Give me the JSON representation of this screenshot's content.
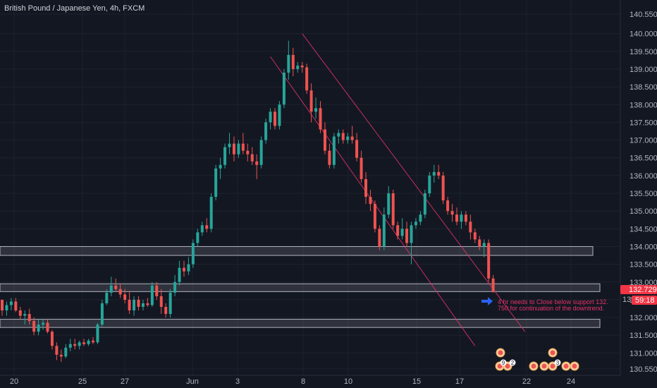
{
  "chart_data": {
    "type": "candlestick",
    "title": "British Pound / Japanese Yen, 4h, FXCM",
    "ylim": [
      130.4,
      140.7
    ],
    "y_ticks": [
      "140.550",
      "140.000",
      "139.500",
      "139.000",
      "138.500",
      "138.000",
      "137.500",
      "137.000",
      "136.500",
      "136.000",
      "135.500",
      "135.000",
      "134.500",
      "134.000",
      "133.500",
      "133.000",
      "132.500",
      "132.000",
      "131.500",
      "131.000",
      "130.550"
    ],
    "x_tick_labels": [
      "20",
      "25",
      "27",
      "Jun",
      "3",
      "8",
      "10",
      "15",
      "17",
      "22",
      "24"
    ],
    "price_label": "132.729",
    "countdown_label": "59:18",
    "hidden_tick_fragment": "13",
    "candles": [
      {
        "o": 132.5,
        "h": 132.5,
        "l": 132.05,
        "c": 132.2
      },
      {
        "o": 132.2,
        "h": 132.45,
        "l": 132.05,
        "c": 132.35
      },
      {
        "o": 132.35,
        "h": 132.55,
        "l": 132.2,
        "c": 132.45
      },
      {
        "o": 132.45,
        "h": 132.55,
        "l": 132.15,
        "c": 132.2
      },
      {
        "o": 132.2,
        "h": 132.3,
        "l": 131.95,
        "c": 132.05
      },
      {
        "o": 132.05,
        "h": 132.2,
        "l": 131.8,
        "c": 132.1
      },
      {
        "o": 132.1,
        "h": 132.25,
        "l": 131.8,
        "c": 131.9
      },
      {
        "o": 131.9,
        "h": 132.0,
        "l": 131.5,
        "c": 131.6
      },
      {
        "o": 131.6,
        "h": 131.95,
        "l": 131.5,
        "c": 131.8
      },
      {
        "o": 131.8,
        "h": 131.95,
        "l": 131.65,
        "c": 131.85
      },
      {
        "o": 131.85,
        "h": 131.95,
        "l": 131.55,
        "c": 131.6
      },
      {
        "o": 131.6,
        "h": 131.65,
        "l": 131.1,
        "c": 131.2
      },
      {
        "o": 131.2,
        "h": 131.3,
        "l": 130.8,
        "c": 130.95
      },
      {
        "o": 130.95,
        "h": 131.1,
        "l": 130.75,
        "c": 130.9
      },
      {
        "o": 130.9,
        "h": 131.25,
        "l": 130.85,
        "c": 131.15
      },
      {
        "o": 131.15,
        "h": 131.4,
        "l": 131.05,
        "c": 131.25
      },
      {
        "o": 131.25,
        "h": 131.4,
        "l": 131.1,
        "c": 131.2
      },
      {
        "o": 131.2,
        "h": 131.35,
        "l": 131.1,
        "c": 131.3
      },
      {
        "o": 131.3,
        "h": 131.4,
        "l": 131.2,
        "c": 131.25
      },
      {
        "o": 131.25,
        "h": 131.4,
        "l": 131.2,
        "c": 131.35
      },
      {
        "o": 131.35,
        "h": 131.45,
        "l": 131.25,
        "c": 131.3
      },
      {
        "o": 131.3,
        "h": 131.85,
        "l": 131.25,
        "c": 131.8
      },
      {
        "o": 131.8,
        "h": 132.5,
        "l": 131.75,
        "c": 132.4
      },
      {
        "o": 132.4,
        "h": 132.8,
        "l": 132.35,
        "c": 132.7
      },
      {
        "o": 132.7,
        "h": 133.15,
        "l": 132.6,
        "c": 132.9
      },
      {
        "o": 132.9,
        "h": 133.1,
        "l": 132.75,
        "c": 132.8
      },
      {
        "o": 132.8,
        "h": 132.95,
        "l": 132.55,
        "c": 132.65
      },
      {
        "o": 132.65,
        "h": 132.8,
        "l": 132.4,
        "c": 132.5
      },
      {
        "o": 132.5,
        "h": 132.75,
        "l": 132.1,
        "c": 132.2
      },
      {
        "o": 132.2,
        "h": 132.6,
        "l": 132.05,
        "c": 132.5
      },
      {
        "o": 132.5,
        "h": 132.6,
        "l": 132.2,
        "c": 132.3
      },
      {
        "o": 132.3,
        "h": 132.5,
        "l": 132.2,
        "c": 132.4
      },
      {
        "o": 132.4,
        "h": 132.55,
        "l": 132.3,
        "c": 132.35
      },
      {
        "o": 132.35,
        "h": 133.0,
        "l": 132.3,
        "c": 132.9
      },
      {
        "o": 132.9,
        "h": 133.0,
        "l": 132.5,
        "c": 132.6
      },
      {
        "o": 132.6,
        "h": 132.8,
        "l": 132.1,
        "c": 132.3
      },
      {
        "o": 132.3,
        "h": 132.4,
        "l": 132.0,
        "c": 132.1
      },
      {
        "o": 132.1,
        "h": 132.8,
        "l": 132.0,
        "c": 132.7
      },
      {
        "o": 132.7,
        "h": 133.2,
        "l": 132.6,
        "c": 133.0
      },
      {
        "o": 133.0,
        "h": 133.6,
        "l": 132.9,
        "c": 133.4
      },
      {
        "o": 133.4,
        "h": 133.6,
        "l": 133.15,
        "c": 133.3
      },
      {
        "o": 133.3,
        "h": 133.7,
        "l": 133.2,
        "c": 133.5
      },
      {
        "o": 133.5,
        "h": 134.2,
        "l": 133.4,
        "c": 134.1
      },
      {
        "o": 134.1,
        "h": 134.5,
        "l": 134.0,
        "c": 134.4
      },
      {
        "o": 134.4,
        "h": 134.7,
        "l": 134.3,
        "c": 134.6
      },
      {
        "o": 134.6,
        "h": 134.8,
        "l": 134.4,
        "c": 134.5
      },
      {
        "o": 134.5,
        "h": 135.5,
        "l": 134.4,
        "c": 135.4
      },
      {
        "o": 135.4,
        "h": 136.3,
        "l": 135.3,
        "c": 136.2
      },
      {
        "o": 136.2,
        "h": 136.5,
        "l": 135.9,
        "c": 136.3
      },
      {
        "o": 136.3,
        "h": 136.9,
        "l": 136.2,
        "c": 136.8
      },
      {
        "o": 136.8,
        "h": 137.2,
        "l": 136.6,
        "c": 136.9
      },
      {
        "o": 136.9,
        "h": 137.1,
        "l": 136.4,
        "c": 136.6
      },
      {
        "o": 136.6,
        "h": 137.0,
        "l": 136.5,
        "c": 136.9
      },
      {
        "o": 136.9,
        "h": 137.2,
        "l": 136.6,
        "c": 136.7
      },
      {
        "o": 136.7,
        "h": 136.9,
        "l": 136.4,
        "c": 136.6
      },
      {
        "o": 136.6,
        "h": 136.8,
        "l": 136.3,
        "c": 136.4
      },
      {
        "o": 136.4,
        "h": 136.6,
        "l": 135.9,
        "c": 136.3
      },
      {
        "o": 136.3,
        "h": 137.1,
        "l": 136.2,
        "c": 137.0
      },
      {
        "o": 137.0,
        "h": 137.6,
        "l": 136.9,
        "c": 137.5
      },
      {
        "o": 137.5,
        "h": 137.9,
        "l": 137.3,
        "c": 137.8
      },
      {
        "o": 137.8,
        "h": 137.9,
        "l": 137.3,
        "c": 137.4
      },
      {
        "o": 137.4,
        "h": 138.1,
        "l": 137.3,
        "c": 138.0
      },
      {
        "o": 138.0,
        "h": 139.0,
        "l": 137.9,
        "c": 138.9
      },
      {
        "o": 138.9,
        "h": 139.8,
        "l": 138.7,
        "c": 139.4
      },
      {
        "o": 139.4,
        "h": 139.6,
        "l": 138.8,
        "c": 139.0
      },
      {
        "o": 139.0,
        "h": 139.2,
        "l": 138.9,
        "c": 139.1
      },
      {
        "o": 139.1,
        "h": 139.2,
        "l": 138.9,
        "c": 139.05
      },
      {
        "o": 139.05,
        "h": 139.15,
        "l": 138.3,
        "c": 138.4
      },
      {
        "o": 138.4,
        "h": 138.6,
        "l": 137.5,
        "c": 137.8
      },
      {
        "o": 137.8,
        "h": 138.2,
        "l": 137.6,
        "c": 137.9
      },
      {
        "o": 137.9,
        "h": 138.1,
        "l": 137.2,
        "c": 137.3
      },
      {
        "o": 137.3,
        "h": 137.5,
        "l": 136.6,
        "c": 136.7
      },
      {
        "o": 136.7,
        "h": 136.9,
        "l": 136.2,
        "c": 136.3
      },
      {
        "o": 136.3,
        "h": 137.2,
        "l": 136.2,
        "c": 137.1
      },
      {
        "o": 137.1,
        "h": 137.3,
        "l": 136.9,
        "c": 137.2
      },
      {
        "o": 137.2,
        "h": 137.3,
        "l": 136.9,
        "c": 137.0
      },
      {
        "o": 137.0,
        "h": 137.2,
        "l": 136.9,
        "c": 137.1
      },
      {
        "o": 137.1,
        "h": 137.4,
        "l": 136.9,
        "c": 137.0
      },
      {
        "o": 137.0,
        "h": 137.2,
        "l": 136.4,
        "c": 136.5
      },
      {
        "o": 136.5,
        "h": 136.7,
        "l": 135.8,
        "c": 135.9
      },
      {
        "o": 135.9,
        "h": 136.1,
        "l": 135.2,
        "c": 135.4
      },
      {
        "o": 135.4,
        "h": 135.6,
        "l": 135.0,
        "c": 135.2
      },
      {
        "o": 135.2,
        "h": 135.3,
        "l": 134.4,
        "c": 134.5
      },
      {
        "o": 134.5,
        "h": 134.6,
        "l": 133.9,
        "c": 134.0
      },
      {
        "o": 134.0,
        "h": 135.1,
        "l": 133.9,
        "c": 134.9
      },
      {
        "o": 134.9,
        "h": 135.7,
        "l": 134.8,
        "c": 135.5
      },
      {
        "o": 135.5,
        "h": 135.6,
        "l": 134.5,
        "c": 134.6
      },
      {
        "o": 134.6,
        "h": 134.7,
        "l": 134.2,
        "c": 134.3
      },
      {
        "o": 134.3,
        "h": 134.8,
        "l": 134.2,
        "c": 134.5
      },
      {
        "o": 134.5,
        "h": 134.7,
        "l": 134.0,
        "c": 134.1
      },
      {
        "o": 134.1,
        "h": 134.7,
        "l": 133.5,
        "c": 134.6
      },
      {
        "o": 134.6,
        "h": 134.8,
        "l": 134.5,
        "c": 134.7
      },
      {
        "o": 134.7,
        "h": 135.0,
        "l": 134.6,
        "c": 134.9
      },
      {
        "o": 134.9,
        "h": 135.6,
        "l": 134.8,
        "c": 135.5
      },
      {
        "o": 135.5,
        "h": 136.1,
        "l": 135.4,
        "c": 136.0
      },
      {
        "o": 136.0,
        "h": 136.3,
        "l": 135.8,
        "c": 136.1
      },
      {
        "o": 136.1,
        "h": 136.3,
        "l": 135.9,
        "c": 136.0
      },
      {
        "o": 136.0,
        "h": 136.1,
        "l": 135.2,
        "c": 135.3
      },
      {
        "o": 135.3,
        "h": 135.4,
        "l": 134.9,
        "c": 135.0
      },
      {
        "o": 135.0,
        "h": 135.2,
        "l": 134.7,
        "c": 134.9
      },
      {
        "o": 134.9,
        "h": 135.1,
        "l": 134.6,
        "c": 134.7
      },
      {
        "o": 134.7,
        "h": 135.0,
        "l": 134.5,
        "c": 134.9
      },
      {
        "o": 134.9,
        "h": 135.0,
        "l": 134.6,
        "c": 134.7
      },
      {
        "o": 134.7,
        "h": 134.9,
        "l": 134.2,
        "c": 134.4
      },
      {
        "o": 134.4,
        "h": 134.5,
        "l": 134.1,
        "c": 134.2
      },
      {
        "o": 134.2,
        "h": 134.3,
        "l": 133.9,
        "c": 134.0
      },
      {
        "o": 134.0,
        "h": 134.2,
        "l": 133.7,
        "c": 134.1
      },
      {
        "o": 134.1,
        "h": 134.2,
        "l": 133.0,
        "c": 133.1
      },
      {
        "o": 133.1,
        "h": 133.2,
        "l": 132.7,
        "c": 132.729
      }
    ],
    "zones": [
      {
        "top": 134.0,
        "bottom": 133.75
      },
      {
        "top": 132.95,
        "bottom": 132.73
      },
      {
        "top": 131.95,
        "bottom": 131.72
      }
    ],
    "channel": [
      {
        "x1_idx": 66,
        "y1": 140.0,
        "x2_idx": 115,
        "y2": 131.6
      },
      {
        "x1_idx": 59,
        "y1": 139.35,
        "x2_idx": 104,
        "y2": 131.2
      }
    ],
    "annotation": [
      "4 hr needs to Close below support 132.",
      "750 for continuation of the downtrend."
    ],
    "event_badges": [
      "9",
      "2",
      "3"
    ],
    "colors": {
      "up": "#26a69a",
      "down": "#ef5350",
      "zone": "#9598a1",
      "channel": "#e8336b",
      "arrow": "#2962ff",
      "price_tag": "#f23645",
      "background": "#131722"
    }
  }
}
